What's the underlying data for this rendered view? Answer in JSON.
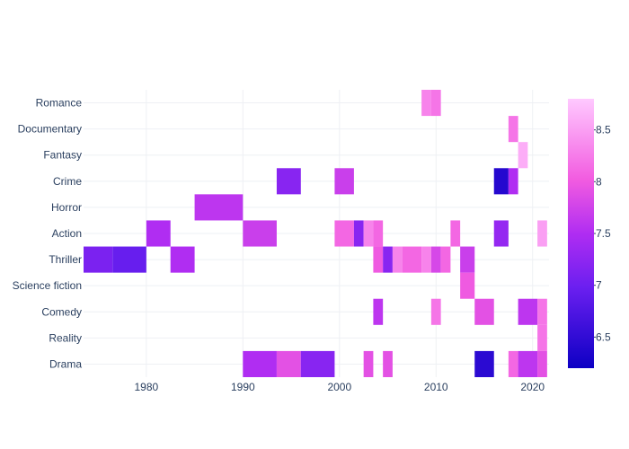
{
  "chart_data": {
    "type": "heatmap",
    "title": "",
    "xlabel": "",
    "ylabel": "",
    "xlim": [
      1973.5,
      2021.7
    ],
    "x_ticks": [
      1980,
      1990,
      2000,
      2010,
      2020
    ],
    "y_categories": [
      "Drama",
      "Reality",
      "Comedy",
      "Science fiction",
      "Thriller",
      "Action",
      "Horror",
      "Crime",
      "Fantasy",
      "Documentary",
      "Romance"
    ],
    "colorscale": {
      "min": 6.2,
      "max": 8.8,
      "ticks": [
        6.5,
        7,
        7.5,
        8,
        8.5
      ],
      "stops": [
        [
          0.0,
          "#0d00c4"
        ],
        [
          0.3,
          "#6b1ff0"
        ],
        [
          0.5,
          "#b02df2"
        ],
        [
          0.7,
          "#f25ce0"
        ],
        [
          1.0,
          "#ffc9ff"
        ]
      ]
    },
    "grid": true,
    "cells": [
      {
        "category": "Romance",
        "x0": 2008.5,
        "x1": 2009.5,
        "value": 8.3
      },
      {
        "category": "Romance",
        "x0": 2009.5,
        "x1": 2010.5,
        "value": 8.2
      },
      {
        "category": "Documentary",
        "x0": 2017.5,
        "x1": 2018.5,
        "value": 8.2
      },
      {
        "category": "Fantasy",
        "x0": 2018.5,
        "x1": 2019.5,
        "value": 8.6
      },
      {
        "category": "Crime",
        "x0": 1993.5,
        "x1": 1996.0,
        "value": 7.2
      },
      {
        "category": "Crime",
        "x0": 1999.5,
        "x1": 2001.5,
        "value": 7.7
      },
      {
        "category": "Crime",
        "x0": 2016.0,
        "x1": 2017.5,
        "value": 6.4
      },
      {
        "category": "Crime",
        "x0": 2017.5,
        "x1": 2018.5,
        "value": 7.5
      },
      {
        "category": "Horror",
        "x0": 1985.0,
        "x1": 1990.0,
        "value": 7.6
      },
      {
        "category": "Action",
        "x0": 1980.0,
        "x1": 1982.5,
        "value": 7.5
      },
      {
        "category": "Action",
        "x0": 1990.0,
        "x1": 1993.5,
        "value": 7.7
      },
      {
        "category": "Action",
        "x0": 1999.5,
        "x1": 2001.5,
        "value": 8.1
      },
      {
        "category": "Action",
        "x0": 2001.5,
        "x1": 2002.5,
        "value": 7.2
      },
      {
        "category": "Action",
        "x0": 2002.5,
        "x1": 2003.5,
        "value": 8.3
      },
      {
        "category": "Action",
        "x0": 2003.5,
        "x1": 2004.5,
        "value": 8.1
      },
      {
        "category": "Action",
        "x0": 2011.5,
        "x1": 2012.5,
        "value": 8.1
      },
      {
        "category": "Action",
        "x0": 2016.0,
        "x1": 2017.5,
        "value": 7.3
      },
      {
        "category": "Action",
        "x0": 2020.5,
        "x1": 2021.5,
        "value": 8.5
      },
      {
        "category": "Thriller",
        "x0": 1973.5,
        "x1": 1976.5,
        "value": 7.1
      },
      {
        "category": "Thriller",
        "x0": 1976.5,
        "x1": 1980.0,
        "value": 6.95
      },
      {
        "category": "Thriller",
        "x0": 1982.5,
        "x1": 1985.0,
        "value": 7.5
      },
      {
        "category": "Thriller",
        "x0": 2003.5,
        "x1": 2004.5,
        "value": 8.0
      },
      {
        "category": "Thriller",
        "x0": 2004.5,
        "x1": 2005.5,
        "value": 7.2
      },
      {
        "category": "Thriller",
        "x0": 2005.5,
        "x1": 2006.5,
        "value": 8.3
      },
      {
        "category": "Thriller",
        "x0": 2006.5,
        "x1": 2008.5,
        "value": 8.1
      },
      {
        "category": "Thriller",
        "x0": 2008.5,
        "x1": 2009.5,
        "value": 8.3
      },
      {
        "category": "Thriller",
        "x0": 2009.5,
        "x1": 2010.5,
        "value": 7.8
      },
      {
        "category": "Thriller",
        "x0": 2010.5,
        "x1": 2011.5,
        "value": 8.1
      },
      {
        "category": "Thriller",
        "x0": 2012.5,
        "x1": 2014.0,
        "value": 7.7
      },
      {
        "category": "Science fiction",
        "x0": 2012.5,
        "x1": 2014.0,
        "value": 8.0
      },
      {
        "category": "Comedy",
        "x0": 2003.5,
        "x1": 2004.5,
        "value": 7.6
      },
      {
        "category": "Comedy",
        "x0": 2009.5,
        "x1": 2010.5,
        "value": 8.2
      },
      {
        "category": "Comedy",
        "x0": 2014.0,
        "x1": 2016.0,
        "value": 7.9
      },
      {
        "category": "Comedy",
        "x0": 2018.5,
        "x1": 2020.5,
        "value": 7.6
      },
      {
        "category": "Comedy",
        "x0": 2020.5,
        "x1": 2021.5,
        "value": 8.2
      },
      {
        "category": "Reality",
        "x0": 2020.5,
        "x1": 2021.5,
        "value": 8.2
      },
      {
        "category": "Drama",
        "x0": 1990.0,
        "x1": 1993.5,
        "value": 7.5
      },
      {
        "category": "Drama",
        "x0": 1993.5,
        "x1": 1996.0,
        "value": 7.9
      },
      {
        "category": "Drama",
        "x0": 1996.0,
        "x1": 1999.5,
        "value": 7.2
      },
      {
        "category": "Drama",
        "x0": 2002.5,
        "x1": 2003.5,
        "value": 7.9
      },
      {
        "category": "Drama",
        "x0": 2004.5,
        "x1": 2005.5,
        "value": 7.9
      },
      {
        "category": "Drama",
        "x0": 2014.0,
        "x1": 2016.0,
        "value": 6.45
      },
      {
        "category": "Drama",
        "x0": 2017.5,
        "x1": 2018.5,
        "value": 8.1
      },
      {
        "category": "Drama",
        "x0": 2018.5,
        "x1": 2020.5,
        "value": 7.6
      },
      {
        "category": "Drama",
        "x0": 2020.5,
        "x1": 2021.5,
        "value": 7.9
      }
    ]
  }
}
